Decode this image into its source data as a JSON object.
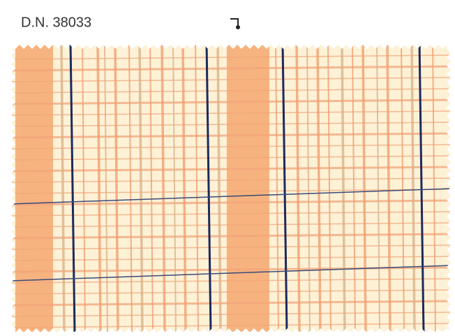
{
  "label": "D.N. 38033"
}
